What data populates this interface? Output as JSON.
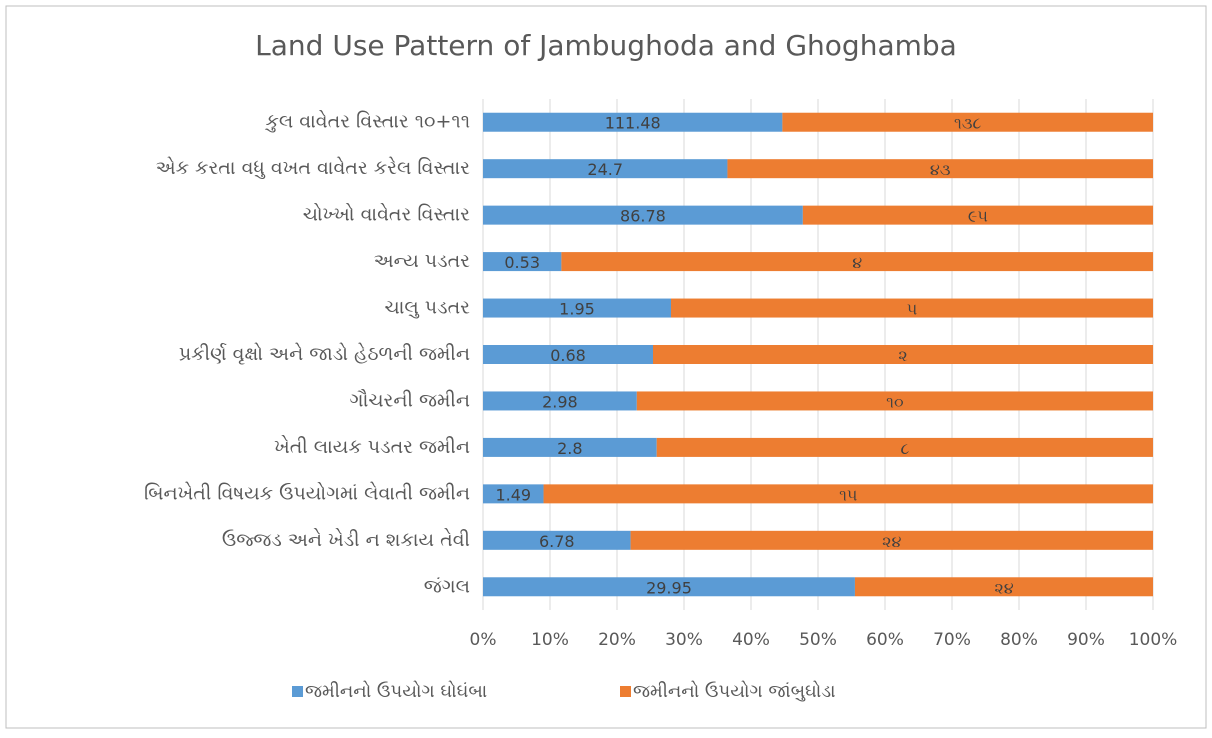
{
  "chart_data": {
    "type": "bar",
    "orientation": "horizontal",
    "stacking": "percent",
    "title": "Land Use Pattern of Jambughoda and Ghoghamba",
    "categories": [
      "કુલ વાવેતર વિસ્તાર ૧૦+૧૧",
      "એક કરતા વધુ વખત વાવેતર કરેલ વિસ્તાર",
      "ચોખ્ખો વાવેતર વિસ્તાર",
      "અન્ય પડતર",
      "ચાલુ પડતર",
      "પ્રકીર્ણ વૃક્ષો અને જાડો હેઠળની જમીન",
      "ગૌચરની જમીન",
      "ખેતી લાયક પડતર જમીન",
      "બિનખેતી વિષયક ઉપયોગમાં લેવાતી જમીન",
      "ઉજ્જડ અને ખેડી ન શકાય તેવી",
      "જંગલ"
    ],
    "series": [
      {
        "name": "જમીનનો ઉપયોગ  ઘોઘંબા",
        "color": "#5b9bd5",
        "values": [
          111.48,
          24.7,
          86.78,
          0.53,
          1.95,
          0.68,
          2.98,
          2.8,
          1.49,
          6.78,
          29.95
        ]
      },
      {
        "name": "જમીનનો ઉપયોગ  જાંબુઘોડા",
        "color": "#ed7d31",
        "values": [
          138,
          43,
          95,
          4,
          5,
          2,
          10,
          8,
          15,
          24,
          24
        ],
        "value_labels": [
          "૧૩૮",
          "૪૩",
          "૯૫",
          "૪",
          "૫",
          "૨",
          "૧૦",
          "૮",
          "૧૫",
          "૨૪",
          "૨૪"
        ]
      }
    ],
    "xlim": [
      0,
      100
    ],
    "xticks": [
      {
        "value": 0,
        "label": "0%"
      },
      {
        "value": 10,
        "label": "10%"
      },
      {
        "value": 20,
        "label": "20%"
      },
      {
        "value": 30,
        "label": "30%"
      },
      {
        "value": 40,
        "label": "40%"
      },
      {
        "value": 50,
        "label": "50%"
      },
      {
        "value": 60,
        "label": "60%"
      },
      {
        "value": 70,
        "label": "70%"
      },
      {
        "value": 80,
        "label": "80%"
      },
      {
        "value": 90,
        "label": "90%"
      },
      {
        "value": 100,
        "label": "100%"
      }
    ],
    "grid": true,
    "legend": "bottom"
  }
}
